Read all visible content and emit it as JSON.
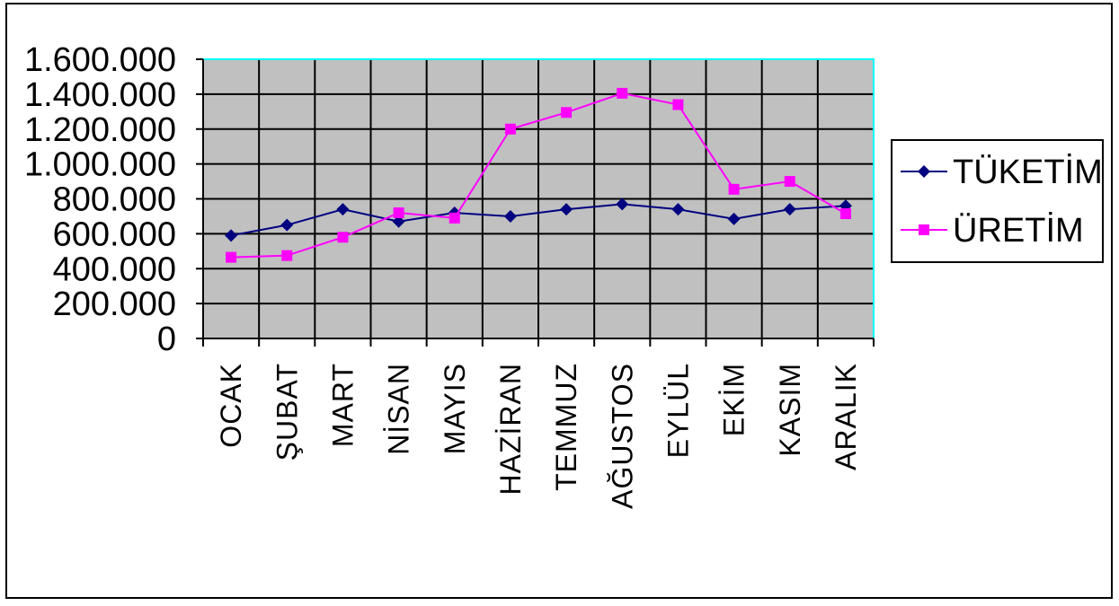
{
  "chart_data": {
    "type": "line",
    "title": "",
    "xlabel": "",
    "ylabel": "",
    "categories": [
      "OCAK",
      "ŞUBAT",
      "MART",
      "NİSAN",
      "MAYIS",
      "HAZİRAN",
      "TEMMUZ",
      "AĞUSTOS",
      "EYLÜL",
      "EKİM",
      "KASIM",
      "ARALIK"
    ],
    "ylim": [
      0,
      1600000
    ],
    "yticks": [
      0,
      200000,
      400000,
      600000,
      800000,
      1000000,
      1200000,
      1400000,
      1600000
    ],
    "ytick_labels": [
      "0",
      "200.000",
      "400.000",
      "600.000",
      "800.000",
      "1.000.000",
      "1.200.000",
      "1.400.000",
      "1.600.000"
    ],
    "grid": true,
    "legend_position": "right",
    "series": [
      {
        "name": "TÜKETİM",
        "color": "#000080",
        "marker": "diamond",
        "values": [
          590000,
          650000,
          740000,
          670000,
          720000,
          700000,
          740000,
          770000,
          740000,
          685000,
          740000,
          760000
        ]
      },
      {
        "name": "ÜRETİM",
        "color": "#FF00FF",
        "marker": "square",
        "values": [
          465000,
          475000,
          580000,
          720000,
          690000,
          1200000,
          1295000,
          1405000,
          1340000,
          855000,
          900000,
          715000
        ]
      }
    ]
  },
  "colors": {
    "plot_background": "#C0C0C0",
    "plot_border": "#00FFFF",
    "gridline": "#000000"
  }
}
